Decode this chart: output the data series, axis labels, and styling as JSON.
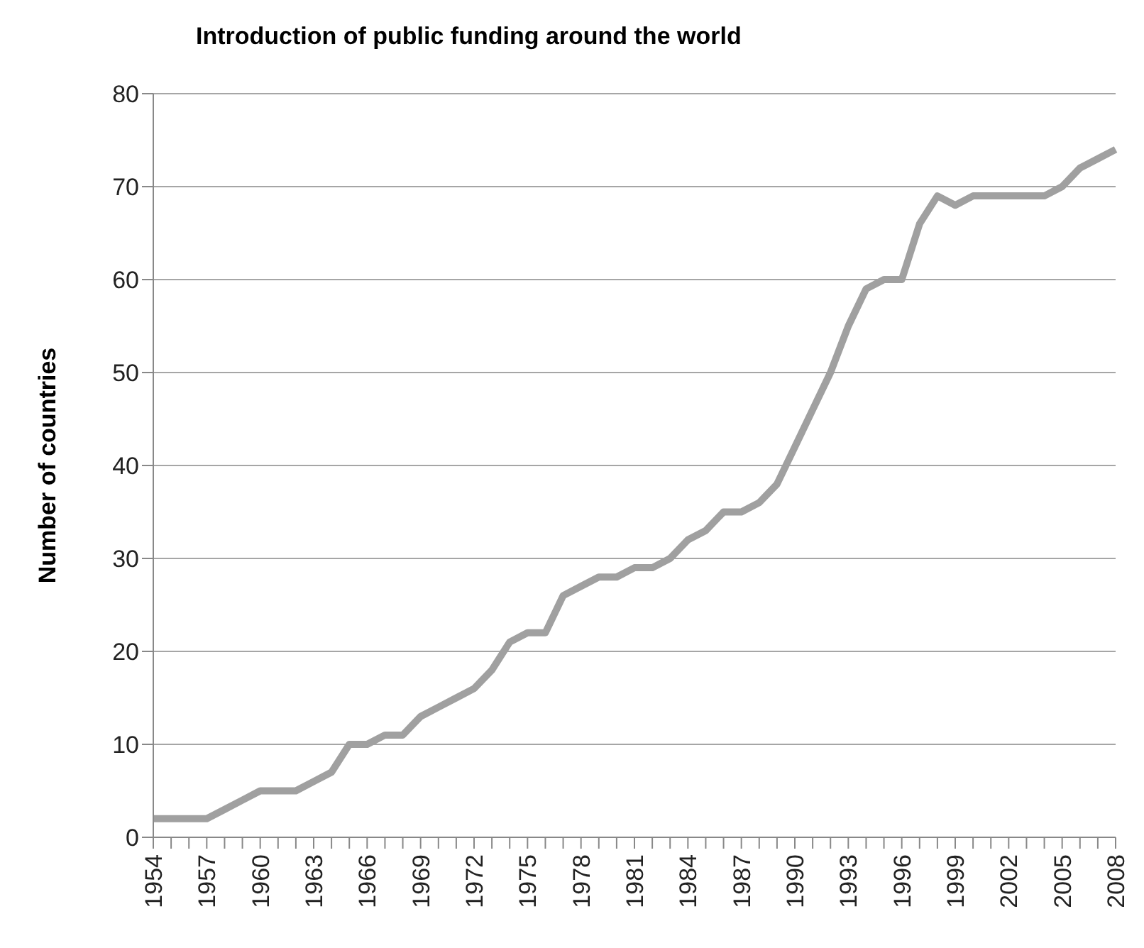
{
  "chart_data": {
    "type": "line",
    "title": "Introduction of public funding around the world",
    "ylabel": "Number of countries",
    "categories": [
      "1954",
      null,
      null,
      "1957",
      null,
      null,
      "1960",
      null,
      null,
      "1963",
      null,
      null,
      "1966",
      null,
      null,
      "1969",
      null,
      null,
      "1972",
      null,
      null,
      "1975",
      null,
      null,
      "1978",
      null,
      null,
      "1981",
      null,
      null,
      "1984",
      null,
      null,
      "1987",
      null,
      null,
      "1990",
      null,
      null,
      "1993",
      null,
      null,
      "1996",
      null,
      null,
      "1999",
      null,
      null,
      "2002",
      null,
      null,
      "2005",
      null,
      null,
      "2008"
    ],
    "series": [
      {
        "color": "#a0a0a0",
        "values": [
          2,
          2,
          2,
          2,
          3,
          4,
          5,
          5,
          5,
          6,
          7,
          10,
          10,
          11,
          11,
          13,
          14,
          15,
          16,
          18,
          21,
          22,
          22,
          26,
          27,
          28,
          28,
          29,
          29,
          30,
          32,
          33,
          35,
          35,
          36,
          38,
          42,
          46,
          50,
          55,
          59,
          60,
          60,
          66,
          69,
          68,
          69,
          69,
          69,
          69,
          69,
          70,
          72,
          73,
          74
        ]
      }
    ],
    "ylim": [
      0,
      80
    ],
    "yticks": [
      0,
      10,
      20,
      30,
      40,
      50,
      60,
      70,
      80
    ],
    "grid": "y",
    "legend": false,
    "marker": "none",
    "line_style": "solid"
  }
}
